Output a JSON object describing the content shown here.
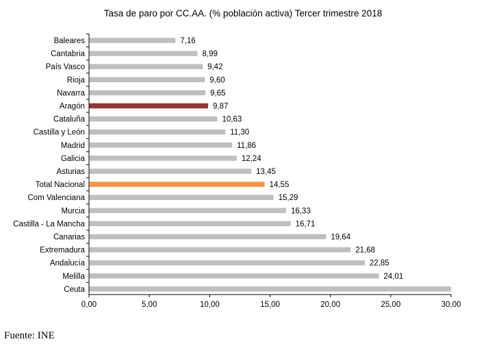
{
  "chart_data": {
    "type": "bar",
    "orientation": "horizontal",
    "title": "Tasa de paro por CC.AA. (% población activa) Tercer trimestre 2018",
    "xlabel": "",
    "ylabel": "",
    "xlim": [
      0,
      30
    ],
    "x_ticks": [
      "0,00",
      "5,00",
      "10,00",
      "15,00",
      "20,00",
      "25,00",
      "30,00"
    ],
    "grid": false,
    "legend": "none",
    "categories": [
      "Baleares",
      "Cantabria",
      "País Vasco",
      "Rioja",
      "Navarra",
      "Aragón",
      "Cataluña",
      "Castilla y León",
      "Madrid",
      "Galicia",
      "Asturias",
      "Total Nacional",
      "Com Valenciana",
      "Murcia",
      "Castilla - La Mancha",
      "Canarias",
      "Extremadura",
      "Andalucía",
      "Melilla",
      "Ceuta"
    ],
    "values": [
      7.16,
      8.99,
      9.42,
      9.6,
      9.65,
      9.87,
      10.63,
      11.3,
      11.86,
      12.24,
      13.45,
      14.55,
      15.29,
      16.33,
      16.71,
      19.64,
      21.68,
      22.85,
      24.01,
      30.0
    ],
    "value_labels": [
      "7,16",
      "8,99",
      "9,42",
      "9,60",
      "9,65",
      "9,87",
      "10,63",
      "11,30",
      "11,86",
      "12,24",
      "13,45",
      "14,55",
      "15,29",
      "16,33",
      "16,71",
      "19,64",
      "21,68",
      "22,85",
      "24,01",
      ""
    ],
    "colors": {
      "default": "#bfbfbf",
      "highlight_aragon": "#943634",
      "highlight_total": "#f79646",
      "axis": "#000000"
    },
    "bar_colors": [
      "default",
      "default",
      "default",
      "default",
      "default",
      "highlight_aragon",
      "default",
      "default",
      "default",
      "default",
      "default",
      "highlight_total",
      "default",
      "default",
      "default",
      "default",
      "default",
      "default",
      "default",
      "default"
    ]
  },
  "source": "Fuente: INE"
}
